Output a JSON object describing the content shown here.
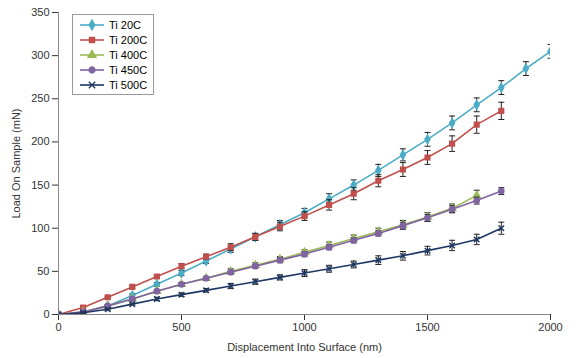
{
  "chart_data": {
    "type": "line",
    "x_label": "Displacement Into Surface (nm)",
    "y_label": "Load On Sample (mN)",
    "xlim": [
      0,
      2000
    ],
    "ylim": [
      0,
      350
    ],
    "xticks": [
      0,
      500,
      1000,
      1500,
      2000
    ],
    "yticks": [
      0,
      50,
      100,
      150,
      200,
      250,
      300,
      350
    ],
    "grid": false,
    "legend": "top-left",
    "series": [
      {
        "name": "Ti 20C",
        "color": "#4bacc6",
        "marker": "diamond",
        "x": [
          0,
          100,
          200,
          300,
          400,
          500,
          600,
          700,
          800,
          900,
          1000,
          1100,
          1200,
          1300,
          1400,
          1500,
          1600,
          1700,
          1800,
          1900,
          2000
        ],
        "values": [
          0,
          2,
          10,
          22,
          35,
          48,
          62,
          76,
          90,
          104,
          118,
          134,
          150,
          167,
          185,
          203,
          222,
          243,
          263,
          285,
          305
        ],
        "errors": [
          0,
          1,
          1,
          2,
          2,
          3,
          3,
          4,
          4,
          5,
          5,
          6,
          6,
          7,
          7,
          8,
          8,
          8,
          8,
          8,
          8
        ]
      },
      {
        "name": "Ti 200C",
        "color": "#c0504d",
        "marker": "square",
        "x": [
          0,
          100,
          200,
          300,
          400,
          500,
          600,
          700,
          800,
          900,
          1000,
          1100,
          1200,
          1300,
          1400,
          1500,
          1600,
          1700,
          1800
        ],
        "values": [
          0,
          8,
          20,
          32,
          44,
          56,
          67,
          78,
          90,
          102,
          114,
          127,
          140,
          155,
          168,
          182,
          198,
          220,
          236
        ],
        "errors": [
          0,
          1,
          1,
          2,
          2,
          3,
          3,
          4,
          4,
          5,
          5,
          6,
          7,
          7,
          8,
          8,
          9,
          10,
          10
        ]
      },
      {
        "name": "Ti 400C",
        "color": "#9bbb59",
        "marker": "triangle",
        "x": [
          0,
          100,
          200,
          300,
          400,
          500,
          600,
          700,
          800,
          900,
          1000,
          1100,
          1200,
          1300,
          1400,
          1500,
          1600,
          1700
        ],
        "values": [
          0,
          3,
          10,
          18,
          27,
          35,
          42,
          50,
          57,
          64,
          72,
          80,
          88,
          96,
          104,
          113,
          123,
          138
        ],
        "errors": [
          0,
          1,
          1,
          1,
          2,
          2,
          2,
          3,
          3,
          3,
          3,
          4,
          4,
          4,
          5,
          5,
          5,
          6
        ]
      },
      {
        "name": "Ti 450C",
        "color": "#8064a2",
        "marker": "circle",
        "x": [
          0,
          100,
          200,
          300,
          400,
          500,
          600,
          700,
          800,
          900,
          1000,
          1100,
          1200,
          1300,
          1400,
          1500,
          1600,
          1700,
          1800
        ],
        "values": [
          0,
          3,
          10,
          18,
          27,
          35,
          42,
          49,
          56,
          63,
          70,
          78,
          86,
          94,
          103,
          112,
          122,
          132,
          143
        ],
        "errors": [
          0,
          1,
          1,
          1,
          1,
          2,
          2,
          2,
          2,
          3,
          3,
          3,
          3,
          3,
          4,
          4,
          4,
          4,
          4
        ]
      },
      {
        "name": "Ti 500C",
        "color": "#1f3864",
        "marker": "x",
        "x": [
          0,
          100,
          200,
          300,
          400,
          500,
          600,
          700,
          800,
          900,
          1000,
          1100,
          1200,
          1300,
          1400,
          1500,
          1600,
          1700,
          1800
        ],
        "values": [
          0,
          2,
          6,
          12,
          18,
          23,
          28,
          33,
          38,
          43,
          48,
          53,
          58,
          63,
          68,
          74,
          80,
          87,
          100
        ],
        "errors": [
          0,
          1,
          1,
          1,
          2,
          2,
          2,
          3,
          3,
          3,
          4,
          4,
          4,
          5,
          5,
          5,
          6,
          6,
          7
        ]
      }
    ]
  }
}
